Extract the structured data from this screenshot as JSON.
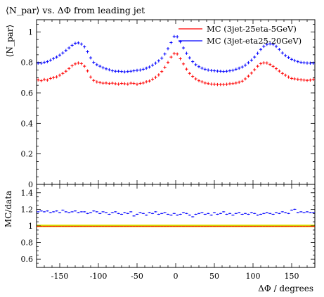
{
  "chart_data": [
    {
      "type": "scatter",
      "title": "⟨N_par⟩ vs. ΔΦ from leading jet",
      "xlabel": "ΔΦ / degrees",
      "ylabel": "⟨N_par⟩",
      "xlim": [
        -180,
        180
      ],
      "ylim": [
        0,
        1.08
      ],
      "legend_position": "top-right",
      "x_tick_labels": [
        "-150",
        "-100",
        "-50",
        "0",
        "50",
        "100",
        "150"
      ],
      "y_tick_labels": [
        "0",
        "0.2",
        "0.4",
        "0.6",
        "0.8",
        "1"
      ],
      "x": [
        -178,
        -174,
        -170,
        -166,
        -162,
        -158,
        -154,
        -150,
        -146,
        -142,
        -138,
        -134,
        -130,
        -126,
        -122,
        -118,
        -114,
        -110,
        -106,
        -102,
        -98,
        -94,
        -90,
        -86,
        -82,
        -78,
        -74,
        -70,
        -66,
        -62,
        -58,
        -54,
        -50,
        -46,
        -42,
        -38,
        -34,
        -30,
        -26,
        -22,
        -18,
        -14,
        -10,
        -6,
        -2,
        2,
        6,
        10,
        14,
        18,
        22,
        26,
        30,
        34,
        38,
        42,
        46,
        50,
        54,
        58,
        62,
        66,
        70,
        74,
        78,
        82,
        86,
        90,
        94,
        98,
        102,
        106,
        110,
        114,
        118,
        122,
        126,
        130,
        134,
        138,
        142,
        146,
        150,
        154,
        158,
        162,
        166,
        170,
        174,
        178
      ],
      "series": [
        {
          "name": "MC (3jet-25eta-5GeV)",
          "color": "#ff0000",
          "values": [
            0.685,
            0.68,
            0.688,
            0.684,
            0.695,
            0.7,
            0.705,
            0.716,
            0.728,
            0.742,
            0.76,
            0.778,
            0.79,
            0.796,
            0.792,
            0.775,
            0.744,
            0.704,
            0.682,
            0.672,
            0.668,
            0.664,
            0.665,
            0.661,
            0.664,
            0.66,
            0.658,
            0.662,
            0.66,
            0.658,
            0.664,
            0.662,
            0.657,
            0.662,
            0.665,
            0.673,
            0.678,
            0.69,
            0.702,
            0.718,
            0.74,
            0.768,
            0.8,
            0.835,
            0.858,
            0.855,
            0.824,
            0.79,
            0.756,
            0.728,
            0.708,
            0.692,
            0.68,
            0.673,
            0.665,
            0.661,
            0.658,
            0.657,
            0.655,
            0.655,
            0.655,
            0.657,
            0.66,
            0.661,
            0.665,
            0.67,
            0.677,
            0.692,
            0.71,
            0.73,
            0.752,
            0.775,
            0.792,
            0.797,
            0.796,
            0.786,
            0.774,
            0.759,
            0.743,
            0.728,
            0.716,
            0.704,
            0.695,
            0.692,
            0.689,
            0.686,
            0.684,
            0.682,
            0.684,
            0.688
          ]
        },
        {
          "name": "MC (3jet-eta25-20GeV)",
          "color": "#0000ff",
          "values": [
            0.795,
            0.795,
            0.8,
            0.805,
            0.815,
            0.825,
            0.835,
            0.848,
            0.862,
            0.878,
            0.895,
            0.912,
            0.925,
            0.928,
            0.92,
            0.902,
            0.87,
            0.83,
            0.8,
            0.785,
            0.775,
            0.765,
            0.758,
            0.752,
            0.745,
            0.742,
            0.742,
            0.74,
            0.738,
            0.74,
            0.742,
            0.745,
            0.748,
            0.75,
            0.755,
            0.762,
            0.77,
            0.782,
            0.795,
            0.81,
            0.828,
            0.855,
            0.89,
            0.93,
            0.97,
            0.968,
            0.935,
            0.895,
            0.86,
            0.83,
            0.805,
            0.785,
            0.772,
            0.762,
            0.755,
            0.75,
            0.747,
            0.745,
            0.743,
            0.742,
            0.74,
            0.742,
            0.745,
            0.748,
            0.755,
            0.762,
            0.77,
            0.782,
            0.798,
            0.815,
            0.835,
            0.86,
            0.885,
            0.905,
            0.918,
            0.922,
            0.918,
            0.905,
            0.885,
            0.862,
            0.845,
            0.832,
            0.82,
            0.812,
            0.805,
            0.8,
            0.798,
            0.796,
            0.795,
            0.795
          ]
        }
      ]
    },
    {
      "type": "scatter",
      "title": "",
      "xlabel": "ΔΦ / degrees",
      "ylabel": "MC/data",
      "xlim": [
        -180,
        180
      ],
      "ylim": [
        0.5,
        1.5
      ],
      "x_tick_labels": [
        "-150",
        "-100",
        "-50",
        "0",
        "50",
        "100",
        "150"
      ],
      "y_tick_labels": [
        "0.6",
        "0.8",
        "1",
        "1.2",
        "1.4"
      ],
      "reference_line": 1.0,
      "reference_band": [
        0.985,
        1.015
      ],
      "reference_band_color": "#e6e600",
      "series": [
        {
          "name": "MC (3jet-25eta-5GeV)",
          "color": "#ff0000",
          "values": [
            0.995,
            0.995,
            0.995,
            0.995,
            0.995,
            0.995,
            0.995,
            0.995,
            0.995,
            0.995,
            0.995,
            0.995,
            0.995,
            0.995,
            0.995,
            0.995,
            0.995,
            0.995,
            0.995,
            0.995,
            0.995,
            0.995,
            0.995,
            0.995,
            0.995,
            0.995,
            0.995,
            0.995,
            0.995,
            0.995,
            0.995,
            0.995,
            0.995,
            0.995,
            0.995,
            0.995,
            0.995,
            0.995,
            0.995,
            0.995,
            0.995,
            0.995,
            0.995,
            0.995,
            0.995,
            0.995,
            0.995,
            0.995,
            0.995,
            0.995,
            0.995,
            0.995,
            0.995,
            0.995,
            0.995,
            0.995,
            0.995,
            0.995,
            0.995,
            0.995,
            0.995,
            0.995,
            0.995,
            0.995,
            0.995,
            0.995,
            0.995,
            0.995,
            0.995,
            0.995,
            0.995,
            0.995,
            0.995,
            0.995,
            0.995,
            0.995,
            0.995,
            0.995,
            0.995,
            0.995,
            0.995,
            0.995,
            0.995,
            0.995,
            0.995,
            0.995,
            0.995,
            0.995,
            0.995,
            0.995
          ]
        },
        {
          "name": "MC (3jet-eta25-20GeV)",
          "color": "#0000ff",
          "values": [
            1.17,
            1.18,
            1.17,
            1.18,
            1.16,
            1.17,
            1.18,
            1.16,
            1.19,
            1.17,
            1.16,
            1.17,
            1.18,
            1.16,
            1.17,
            1.17,
            1.15,
            1.16,
            1.18,
            1.17,
            1.15,
            1.17,
            1.16,
            1.14,
            1.16,
            1.17,
            1.15,
            1.14,
            1.16,
            1.15,
            1.17,
            1.12,
            1.14,
            1.16,
            1.15,
            1.13,
            1.16,
            1.15,
            1.17,
            1.14,
            1.15,
            1.16,
            1.14,
            1.13,
            1.15,
            1.13,
            1.14,
            1.16,
            1.15,
            1.13,
            1.11,
            1.14,
            1.15,
            1.16,
            1.14,
            1.15,
            1.13,
            1.16,
            1.14,
            1.15,
            1.17,
            1.14,
            1.15,
            1.13,
            1.15,
            1.16,
            1.14,
            1.15,
            1.14,
            1.16,
            1.15,
            1.13,
            1.14,
            1.15,
            1.16,
            1.15,
            1.14,
            1.16,
            1.15,
            1.17,
            1.16,
            1.15,
            1.19,
            1.2,
            1.16,
            1.17,
            1.16,
            1.17,
            1.16,
            1.16
          ]
        }
      ]
    }
  ]
}
